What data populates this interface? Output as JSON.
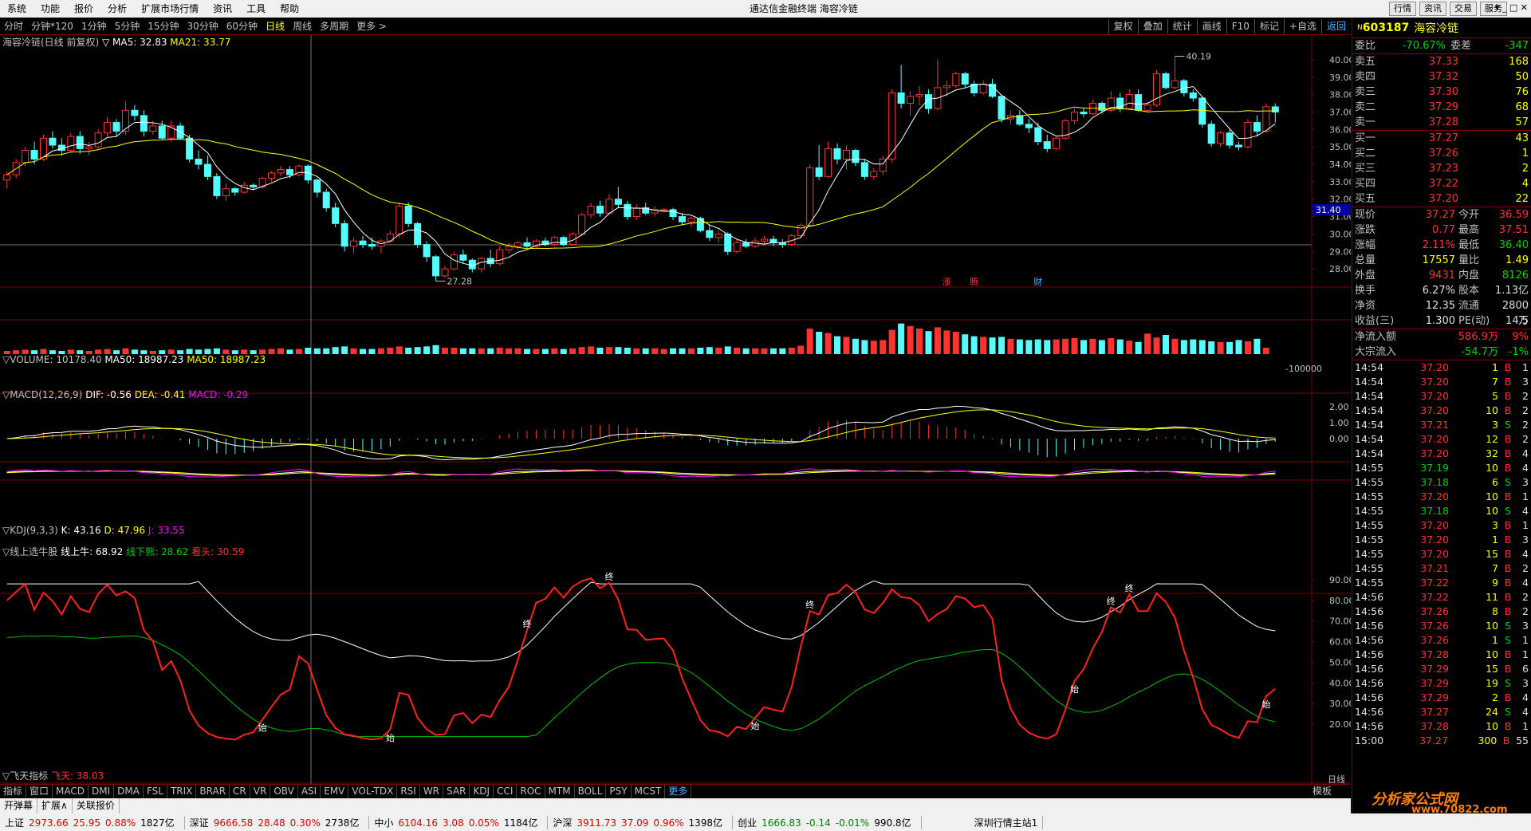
{
  "menu": [
    "系统",
    "功能",
    "报价",
    "分析",
    "扩展市场行情",
    "资讯",
    "工具",
    "帮助"
  ],
  "window_title": "通达信金融终端  海容冷链",
  "right_buttons": [
    "行情",
    "资讯",
    "交易",
    "服务"
  ],
  "periods": [
    "分时",
    "分钟*120",
    "1分钟",
    "5分钟",
    "15分钟",
    "30分钟",
    "60分钟",
    "日线",
    "周线",
    "多周期",
    "更多 >"
  ],
  "active_period": "日线",
  "tools": [
    "复权",
    "叠加",
    "统计",
    "画线",
    "F10",
    "标记",
    "+自选",
    "返回"
  ],
  "stock": {
    "code": "603187",
    "name": "海容冷链",
    "sup": "N"
  },
  "main_legend": {
    "title": "海容冷链(日线 前复权)",
    "ma5": "▽ MA5: 32.83",
    "ma21": "MA21: 33.77"
  },
  "vol_legend": {
    "label": "▽VOLUME: 10178.40",
    "ma50a": "MA50: 18987.23",
    "ma50b": "MA50: 18987.23",
    "axis": "-100000"
  },
  "macd_legend": {
    "label": "▽MACD(12,26,9)",
    "dif": "DIF: -0.56",
    "dea": "DEA: -0.41",
    "macd": "MACD: -0.29"
  },
  "kdj_legend": {
    "label": "▽KDJ(9,3,3)",
    "k": "K: 43.16",
    "d": "D: 47.96",
    "j": "J: 33.55"
  },
  "xs_legend": {
    "label": "▽线上选牛股",
    "a": "线上牛: 68.92",
    "b": "线下熊: 28.62",
    "c": "看头: 30.59"
  },
  "ft_legend": {
    "label": "▽飞天指标",
    "a": "飞天: 38.03"
  },
  "price_axis": [
    "40.00",
    "39.00",
    "38.00",
    "37.00",
    "36.00",
    "35.00",
    "34.00",
    "33.00",
    "32.00",
    "31.00",
    "30.00",
    "29.00",
    "28.00"
  ],
  "price_marker": "31.40",
  "high_label": "40.19",
  "low_label": "27.28",
  "macd_axis": [
    "2.00",
    "1.00",
    "0.00"
  ],
  "xs_axis": [
    "90.00",
    "80.00",
    "70.00",
    "60.00",
    "50.00",
    "40.00",
    "30.00",
    "20.00"
  ],
  "event_marks": [
    "涨",
    "腾",
    "财"
  ],
  "sig_start": "始",
  "sig_end": "终",
  "tabs": [
    "指标",
    "窗口",
    "MACD",
    "DMI",
    "DMA",
    "FSL",
    "TRIX",
    "BRAR",
    "CR",
    "VR",
    "OBV",
    "ASI",
    "EMV",
    "VOL-TDX",
    "RSI",
    "WR",
    "SAR",
    "KDJ",
    "CCI",
    "ROC",
    "MTM",
    "BOLL",
    "PSY",
    "MCST",
    "更多"
  ],
  "tab_right": "模板",
  "tab_right2": "日线",
  "tabs2": [
    "开弹幕",
    "扩展∧",
    "关联报价"
  ],
  "orderbook": {
    "weibi": {
      "label": "委比",
      "value": "-70.67%",
      "label2": "委差",
      "value2": "-347"
    },
    "sell": [
      {
        "l": "卖五",
        "p": "37.33",
        "v": "168"
      },
      {
        "l": "卖四",
        "p": "37.32",
        "v": "50"
      },
      {
        "l": "卖三",
        "p": "37.30",
        "v": "76"
      },
      {
        "l": "卖二",
        "p": "37.29",
        "v": "68"
      },
      {
        "l": "卖一",
        "p": "37.28",
        "v": "57"
      }
    ],
    "buy": [
      {
        "l": "买一",
        "p": "37.27",
        "v": "43"
      },
      {
        "l": "买二",
        "p": "37.26",
        "v": "1"
      },
      {
        "l": "买三",
        "p": "37.23",
        "v": "2"
      },
      {
        "l": "买四",
        "p": "37.22",
        "v": "4"
      },
      {
        "l": "买五",
        "p": "37.20",
        "v": "22"
      }
    ]
  },
  "quote": [
    [
      "现价",
      "37.27",
      "今开",
      "36.59"
    ],
    [
      "涨跌",
      "0.77",
      "最高",
      "37.51"
    ],
    [
      "涨幅",
      "2.11%",
      "最低",
      "36.40"
    ],
    [
      "总量",
      "17557",
      "量比",
      "1.49"
    ],
    [
      "外盘",
      "9431",
      "内盘",
      "8126"
    ],
    [
      "换手",
      "6.27%",
      "股本",
      "1.13亿"
    ],
    [
      "净资",
      "12.35",
      "流通",
      "2800万"
    ],
    [
      "收益(三)",
      "1.300",
      "PE(动)",
      "14.5"
    ]
  ],
  "flow": [
    [
      "净流入额",
      "586.9万",
      "9%"
    ],
    [
      "大宗流入",
      "-54.7万",
      "-1%"
    ]
  ],
  "ticks": [
    [
      "14:54",
      "37.20",
      "1",
      "B",
      "1"
    ],
    [
      "14:54",
      "37.20",
      "7",
      "B",
      "3"
    ],
    [
      "14:54",
      "37.20",
      "5",
      "B",
      "2"
    ],
    [
      "14:54",
      "37.20",
      "10",
      "B",
      "2"
    ],
    [
      "14:54",
      "37.21",
      "3",
      "S",
      "2"
    ],
    [
      "14:54",
      "37.20",
      "12",
      "B",
      "2"
    ],
    [
      "14:54",
      "37.20",
      "32",
      "B",
      "4"
    ],
    [
      "14:55",
      "37.19",
      "10",
      "B",
      "4"
    ],
    [
      "14:55",
      "37.18",
      "6",
      "S",
      "3"
    ],
    [
      "14:55",
      "37.20",
      "10",
      "B",
      "1"
    ],
    [
      "14:55",
      "37.18",
      "10",
      "S",
      "4"
    ],
    [
      "14:55",
      "37.20",
      "3",
      "B",
      "1"
    ],
    [
      "14:55",
      "37.20",
      "1",
      "B",
      "3"
    ],
    [
      "14:55",
      "37.20",
      "15",
      "B",
      "4"
    ],
    [
      "14:55",
      "37.21",
      "7",
      "B",
      "2"
    ],
    [
      "14:55",
      "37.22",
      "9",
      "B",
      "4"
    ],
    [
      "14:56",
      "37.22",
      "11",
      "B",
      "2"
    ],
    [
      "14:56",
      "37.26",
      "8",
      "B",
      "2"
    ],
    [
      "14:56",
      "37.26",
      "10",
      "S",
      "3"
    ],
    [
      "14:56",
      "37.26",
      "1",
      "S",
      "1"
    ],
    [
      "14:56",
      "37.28",
      "10",
      "B",
      "1"
    ],
    [
      "14:56",
      "37.29",
      "15",
      "B",
      "6"
    ],
    [
      "14:56",
      "37.29",
      "19",
      "S",
      "3"
    ],
    [
      "14:56",
      "37.29",
      "2",
      "B",
      "4"
    ],
    [
      "14:56",
      "37.27",
      "24",
      "S",
      "4"
    ],
    [
      "14:56",
      "37.28",
      "10",
      "B",
      "1"
    ],
    [
      "15:00",
      "37.27",
      "300",
      "B",
      "55"
    ]
  ],
  "status": [
    {
      "n": "上证",
      "v": "2973.66",
      "c": "25.95",
      "p": "0.88%",
      "a": "1827亿",
      "col": "r"
    },
    {
      "n": "深证",
      "v": "9666.58",
      "c": "28.48",
      "p": "0.30%",
      "a": "2738亿",
      "col": "r"
    },
    {
      "n": "中小",
      "v": "6104.16",
      "c": "3.08",
      "p": "0.05%",
      "a": "1184亿",
      "col": "r"
    },
    {
      "n": "沪深",
      "v": "3911.73",
      "c": "37.09",
      "p": "0.96%",
      "a": "1398亿",
      "col": "r"
    },
    {
      "n": "创业",
      "v": "1666.83",
      "c": "-0.14",
      "p": "-0.01%",
      "a": "990.8亿",
      "col": "g"
    }
  ],
  "status_right": "深圳行情主站1",
  "logo": "分析家公式网",
  "logo_url": "www.70822.com",
  "chart_data": {
    "type": "candlestick",
    "ohlc": [
      [
        33.1,
        33.6,
        32.6,
        33.4
      ],
      [
        33.4,
        34.3,
        33.2,
        34.1
      ],
      [
        34.1,
        35.0,
        33.9,
        34.8
      ],
      [
        34.8,
        35.3,
        34.0,
        34.3
      ],
      [
        34.3,
        35.7,
        34.2,
        35.5
      ],
      [
        35.5,
        35.9,
        34.9,
        35.1
      ],
      [
        35.1,
        35.5,
        34.5,
        34.8
      ],
      [
        34.8,
        35.8,
        34.7,
        35.6
      ],
      [
        35.6,
        35.9,
        34.6,
        34.9
      ],
      [
        34.9,
        35.3,
        34.5,
        35.0
      ],
      [
        35.0,
        36.0,
        34.9,
        35.8
      ],
      [
        35.8,
        36.7,
        35.6,
        36.4
      ],
      [
        36.4,
        36.6,
        35.6,
        35.9
      ],
      [
        35.9,
        37.6,
        35.7,
        37.1
      ],
      [
        37.1,
        37.4,
        36.5,
        36.8
      ],
      [
        36.8,
        37.1,
        35.6,
        35.9
      ],
      [
        35.9,
        36.5,
        35.7,
        36.2
      ],
      [
        36.2,
        36.5,
        35.4,
        35.5
      ],
      [
        35.5,
        36.5,
        35.3,
        36.2
      ],
      [
        36.2,
        36.4,
        35.4,
        35.5
      ],
      [
        35.5,
        35.7,
        34.1,
        34.3
      ],
      [
        34.3,
        34.8,
        33.7,
        34.0
      ],
      [
        34.0,
        34.5,
        33.1,
        33.3
      ],
      [
        33.3,
        33.5,
        32.0,
        32.2
      ],
      [
        32.2,
        32.9,
        31.9,
        32.6
      ],
      [
        32.6,
        32.7,
        32.2,
        32.4
      ],
      [
        32.4,
        33.0,
        32.3,
        32.8
      ],
      [
        32.8,
        32.9,
        32.5,
        32.7
      ],
      [
        32.7,
        33.3,
        32.6,
        33.2
      ],
      [
        33.2,
        33.6,
        33.0,
        33.5
      ],
      [
        33.5,
        33.9,
        33.3,
        33.7
      ],
      [
        33.7,
        33.9,
        33.2,
        33.4
      ],
      [
        33.4,
        34.0,
        33.3,
        33.9
      ],
      [
        33.9,
        34.0,
        32.9,
        33.1
      ],
      [
        33.1,
        33.2,
        32.1,
        32.4
      ],
      [
        32.4,
        32.6,
        31.3,
        31.5
      ],
      [
        31.5,
        31.8,
        30.4,
        30.6
      ],
      [
        30.6,
        30.8,
        29.0,
        29.3
      ],
      [
        29.3,
        29.8,
        28.9,
        29.6
      ],
      [
        29.6,
        29.9,
        29.2,
        29.4
      ],
      [
        29.4,
        29.8,
        29.1,
        29.3
      ],
      [
        29.3,
        29.7,
        28.9,
        29.6
      ],
      [
        29.6,
        30.2,
        29.5,
        30.0
      ],
      [
        30.0,
        31.8,
        29.8,
        31.6
      ],
      [
        31.6,
        31.8,
        30.4,
        30.6
      ],
      [
        30.6,
        30.7,
        29.2,
        29.4
      ],
      [
        29.4,
        29.6,
        28.4,
        28.7
      ],
      [
        28.7,
        28.8,
        27.3,
        27.6
      ],
      [
        27.6,
        28.2,
        27.5,
        28.0
      ],
      [
        28.0,
        29.0,
        27.9,
        28.8
      ],
      [
        28.8,
        29.1,
        28.3,
        28.5
      ],
      [
        28.5,
        28.6,
        27.8,
        28.0
      ],
      [
        28.0,
        28.7,
        27.8,
        28.6
      ],
      [
        28.6,
        29.1,
        28.1,
        28.3
      ],
      [
        28.3,
        29.3,
        28.2,
        29.1
      ],
      [
        29.1,
        29.5,
        28.9,
        29.3
      ],
      [
        29.3,
        29.6,
        29.1,
        29.5
      ],
      [
        29.5,
        29.8,
        29.2,
        29.3
      ],
      [
        29.3,
        29.7,
        29.2,
        29.6
      ],
      [
        29.6,
        29.8,
        29.3,
        29.4
      ],
      [
        29.4,
        29.9,
        29.3,
        29.8
      ],
      [
        29.8,
        29.9,
        29.3,
        29.4
      ],
      [
        29.4,
        30.1,
        29.3,
        30.0
      ],
      [
        30.0,
        31.2,
        29.9,
        31.1
      ],
      [
        31.1,
        31.8,
        30.9,
        31.6
      ],
      [
        31.6,
        31.9,
        31.0,
        31.2
      ],
      [
        31.2,
        32.3,
        31.1,
        32.0
      ],
      [
        32.0,
        32.7,
        31.5,
        31.7
      ],
      [
        31.7,
        31.9,
        30.8,
        31.0
      ],
      [
        31.0,
        31.7,
        30.8,
        31.5
      ],
      [
        31.5,
        31.8,
        31.1,
        31.2
      ],
      [
        31.2,
        31.6,
        31.0,
        31.4
      ],
      [
        31.4,
        31.5,
        31.3,
        31.4
      ],
      [
        31.4,
        31.5,
        30.8,
        31.0
      ],
      [
        31.0,
        31.2,
        30.5,
        30.7
      ],
      [
        30.7,
        31.0,
        30.4,
        30.9
      ],
      [
        30.9,
        31.0,
        30.1,
        30.2
      ],
      [
        30.2,
        30.5,
        29.6,
        29.8
      ],
      [
        29.8,
        30.2,
        29.5,
        30.0
      ],
      [
        30.0,
        30.1,
        28.8,
        29.0
      ],
      [
        29.0,
        29.7,
        28.9,
        29.5
      ],
      [
        29.5,
        29.7,
        29.2,
        29.3
      ],
      [
        29.3,
        29.8,
        29.2,
        29.6
      ],
      [
        29.6,
        29.9,
        29.4,
        29.7
      ],
      [
        29.7,
        29.9,
        29.3,
        29.5
      ],
      [
        29.5,
        29.7,
        29.2,
        29.4
      ],
      [
        29.4,
        30.0,
        29.3,
        29.9
      ],
      [
        29.9,
        30.6,
        29.8,
        30.5
      ],
      [
        30.5,
        34.0,
        30.4,
        33.8
      ],
      [
        33.8,
        35.1,
        33.1,
        33.3
      ],
      [
        33.3,
        35.3,
        33.2,
        34.9
      ],
      [
        34.9,
        35.2,
        34.0,
        34.3
      ],
      [
        34.3,
        35.1,
        33.7,
        34.8
      ],
      [
        34.8,
        34.9,
        33.9,
        34.1
      ],
      [
        34.1,
        34.3,
        33.1,
        33.3
      ],
      [
        33.3,
        33.8,
        33.1,
        33.6
      ],
      [
        33.6,
        34.5,
        33.4,
        34.3
      ],
      [
        34.3,
        38.3,
        34.1,
        38.1
      ],
      [
        38.1,
        39.7,
        37.2,
        37.5
      ],
      [
        37.5,
        38.2,
        36.8,
        37.9
      ],
      [
        37.9,
        38.5,
        37.4,
        38.0
      ],
      [
        38.0,
        38.3,
        36.9,
        37.2
      ],
      [
        37.2,
        40.0,
        37.1,
        38.4
      ],
      [
        38.4,
        38.8,
        37.9,
        38.5
      ],
      [
        38.5,
        39.3,
        38.4,
        39.2
      ],
      [
        39.2,
        39.3,
        38.4,
        38.6
      ],
      [
        38.6,
        38.8,
        37.9,
        38.1
      ],
      [
        38.1,
        38.8,
        38.0,
        38.6
      ],
      [
        38.6,
        38.9,
        37.8,
        37.9
      ],
      [
        37.9,
        38.0,
        36.4,
        36.6
      ],
      [
        36.6,
        37.1,
        36.3,
        36.8
      ],
      [
        36.8,
        37.1,
        36.2,
        36.3
      ],
      [
        36.3,
        36.6,
        35.8,
        36.1
      ],
      [
        36.1,
        36.4,
        35.1,
        35.3
      ],
      [
        35.3,
        35.7,
        34.7,
        34.9
      ],
      [
        34.9,
        35.6,
        34.8,
        35.5
      ],
      [
        35.5,
        36.6,
        35.4,
        36.5
      ],
      [
        36.5,
        37.2,
        36.3,
        37.0
      ],
      [
        37.0,
        37.2,
        36.7,
        36.9
      ],
      [
        36.9,
        37.7,
        36.8,
        37.5
      ],
      [
        37.5,
        37.6,
        36.9,
        37.1
      ],
      [
        37.1,
        38.2,
        37.0,
        37.8
      ],
      [
        37.8,
        38.1,
        37.0,
        37.2
      ],
      [
        37.2,
        38.3,
        37.1,
        38.0
      ],
      [
        38.0,
        38.3,
        37.0,
        37.1
      ],
      [
        37.1,
        37.6,
        37.0,
        37.4
      ],
      [
        37.4,
        39.4,
        37.3,
        39.2
      ],
      [
        39.2,
        39.3,
        38.3,
        38.4
      ],
      [
        38.4,
        40.2,
        38.3,
        38.8
      ],
      [
        38.8,
        38.9,
        37.9,
        38.1
      ],
      [
        38.1,
        38.3,
        37.6,
        37.8
      ],
      [
        37.8,
        37.9,
        36.1,
        36.3
      ],
      [
        36.3,
        36.5,
        35.0,
        35.2
      ],
      [
        35.2,
        35.9,
        35.0,
        35.8
      ],
      [
        35.8,
        36.0,
        34.9,
        35.1
      ],
      [
        35.1,
        35.3,
        34.8,
        35.0
      ],
      [
        35.0,
        36.6,
        34.9,
        36.4
      ],
      [
        36.4,
        36.8,
        35.6,
        35.9
      ],
      [
        35.9,
        37.5,
        35.8,
        37.3
      ],
      [
        37.3,
        37.5,
        36.4,
        37.0
      ]
    ],
    "volume": [
      5,
      6,
      7,
      6,
      8,
      6,
      5,
      7,
      6,
      5,
      7,
      8,
      6,
      9,
      7,
      6,
      5,
      6,
      7,
      6,
      8,
      7,
      8,
      9,
      7,
      6,
      7,
      6,
      7,
      8,
      9,
      7,
      8,
      10,
      9,
      9,
      11,
      12,
      9,
      8,
      8,
      9,
      10,
      12,
      10,
      11,
      12,
      14,
      10,
      10,
      9,
      9,
      9,
      9,
      10,
      9,
      9,
      8,
      8,
      8,
      9,
      8,
      9,
      11,
      12,
      10,
      11,
      11,
      10,
      9,
      9,
      9,
      8,
      9,
      9,
      9,
      10,
      11,
      10,
      12,
      10,
      9,
      9,
      9,
      9,
      9,
      10,
      13,
      40,
      35,
      33,
      28,
      27,
      24,
      22,
      21,
      22,
      38,
      48,
      44,
      40,
      36,
      42,
      37,
      35,
      31,
      28,
      27,
      26,
      27,
      24,
      23,
      22,
      23,
      22,
      23,
      24,
      25,
      22,
      24,
      22,
      25,
      23,
      21,
      19,
      32,
      26,
      30,
      24,
      22,
      23,
      22,
      20,
      19,
      19,
      22,
      20,
      24,
      10
    ],
    "price_range": [
      27.0,
      40.5
    ],
    "macd_range": [
      -1.2,
      2.3
    ],
    "xs_range": [
      10,
      95
    ]
  }
}
